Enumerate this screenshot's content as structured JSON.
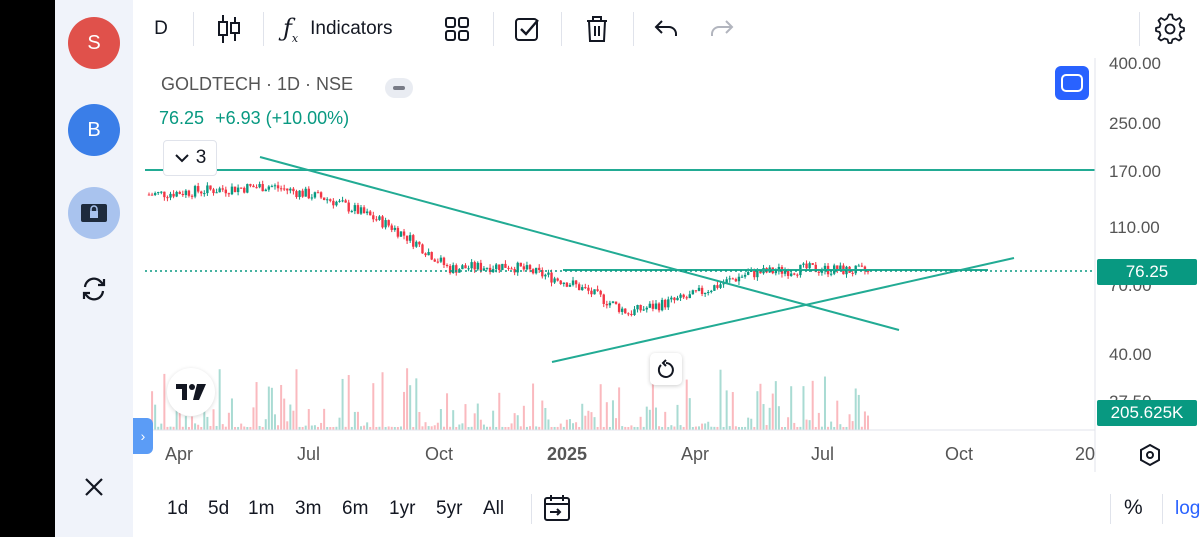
{
  "sidebar": {
    "avatar_s": "S",
    "avatar_b": "B"
  },
  "toolbar": {
    "interval": "D",
    "indicators_label": "Indicators"
  },
  "legend": {
    "symbol": "GOLDTECH · 1D · NSE",
    "price": "76.25",
    "change": "+6.93 (+10.00%)",
    "collapse_count": "3"
  },
  "price_axis": {
    "ticks": [
      "400.00",
      "250.00",
      "170.00",
      "110.00",
      "70.00",
      "40.00",
      "27.50"
    ],
    "current_price": "76.25",
    "volume": "205.625K",
    "log_scale": true
  },
  "time_axis": {
    "ticks": [
      "Apr",
      "Jul",
      "Oct",
      "2025",
      "Apr",
      "Jul",
      "Oct",
      "20"
    ]
  },
  "ranges": [
    "1d",
    "5d",
    "1m",
    "3m",
    "6m",
    "1yr",
    "5yr",
    "All"
  ],
  "bottom_right": {
    "percent": "%",
    "log": "log"
  },
  "colors": {
    "accent": "#2962ff",
    "up": "#089981",
    "down": "#f23645",
    "line": "#22ab94",
    "price_tag": "#089981"
  },
  "chart_data": {
    "type": "candlestick",
    "symbol": "GOLDTECH",
    "interval": "1D",
    "exchange": "NSE",
    "last_price": 76.25,
    "change": 6.93,
    "change_pct": 10.0,
    "approx_close_path": [
      {
        "x": "2024-04",
        "y": 140
      },
      {
        "x": "2024-06",
        "y": 145
      },
      {
        "x": "2024-07",
        "y": 150
      },
      {
        "x": "2024-08",
        "y": 135
      },
      {
        "x": "2024-10",
        "y": 110
      },
      {
        "x": "2024-11",
        "y": 78
      },
      {
        "x": "2024-12",
        "y": 80
      },
      {
        "x": "2025-02",
        "y": 70
      },
      {
        "x": "2025-03",
        "y": 55
      },
      {
        "x": "2025-04",
        "y": 62
      },
      {
        "x": "2025-06",
        "y": 75
      },
      {
        "x": "2025-07",
        "y": 78
      },
      {
        "x": "2025-08",
        "y": 76.25
      }
    ],
    "horizontal_lines": [
      170,
      76.25
    ],
    "trend_lines": [
      "descending",
      "ascending"
    ]
  }
}
